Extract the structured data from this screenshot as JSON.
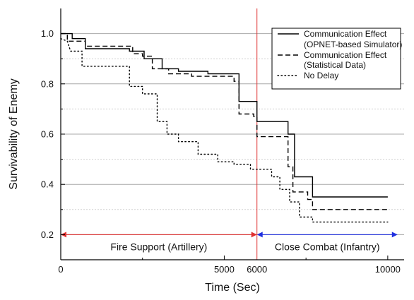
{
  "chart_data": {
    "type": "line",
    "xlabel": "Time (Sec)",
    "ylabel": "Survivability of Enemy",
    "xlim": [
      0,
      10500
    ],
    "ylim": [
      0.1,
      1.1
    ],
    "x_ticks": [
      {
        "value": 0,
        "label": "0"
      },
      {
        "value": 5000,
        "label": "5000"
      },
      {
        "value": 6000,
        "label": "6000",
        "color": "#e03030"
      },
      {
        "value": 10000,
        "label": "10000"
      }
    ],
    "y_ticks": [
      {
        "value": 0.2,
        "label": "0.2"
      },
      {
        "value": 0.4,
        "label": "0.4"
      },
      {
        "value": 0.6,
        "label": "0.6"
      },
      {
        "value": 0.8,
        "label": "0.8"
      },
      {
        "value": 1.0,
        "label": "1.0"
      }
    ],
    "grid": true,
    "legend_position": "top-right",
    "series": [
      {
        "name_lines": [
          "Communication Effect",
          "(OPNET-based Simulator)"
        ],
        "style": "solid",
        "color": "#000000",
        "x": [
          0,
          350,
          350,
          750,
          750,
          2100,
          2100,
          2550,
          2550,
          3100,
          3100,
          3600,
          3600,
          4500,
          4500,
          5450,
          5450,
          6000,
          6000,
          6950,
          6950,
          7150,
          7150,
          7700,
          7700,
          10000
        ],
        "y": [
          1.0,
          1.0,
          0.98,
          0.98,
          0.94,
          0.94,
          0.93,
          0.93,
          0.9,
          0.9,
          0.86,
          0.86,
          0.85,
          0.85,
          0.84,
          0.84,
          0.73,
          0.73,
          0.65,
          0.65,
          0.6,
          0.6,
          0.43,
          0.43,
          0.35,
          0.35
        ]
      },
      {
        "name_lines": [
          "Communication Effect",
          "(Statistical Data)"
        ],
        "style": "dashed",
        "color": "#000000",
        "x": [
          0,
          200,
          200,
          750,
          750,
          2200,
          2200,
          2500,
          2500,
          2800,
          2800,
          3300,
          3300,
          4000,
          4000,
          5300,
          5300,
          5450,
          5450,
          5900,
          5900,
          6000,
          6000,
          6950,
          6950,
          7100,
          7100,
          7550,
          7550,
          7700,
          7700,
          10000
        ],
        "y": [
          1.0,
          1.0,
          0.97,
          0.97,
          0.95,
          0.95,
          0.92,
          0.92,
          0.91,
          0.91,
          0.86,
          0.86,
          0.84,
          0.84,
          0.83,
          0.83,
          0.81,
          0.81,
          0.68,
          0.68,
          0.67,
          0.67,
          0.59,
          0.59,
          0.47,
          0.47,
          0.37,
          0.37,
          0.34,
          0.34,
          0.3,
          0.3
        ]
      },
      {
        "name_lines": [
          "No Delay"
        ],
        "style": "dotted",
        "color": "#000000",
        "x": [
          0,
          200,
          300,
          650,
          650,
          2100,
          2100,
          2500,
          2500,
          2950,
          2950,
          3250,
          3250,
          3600,
          3600,
          4200,
          4200,
          4800,
          4800,
          5300,
          5300,
          5800,
          5800,
          6450,
          6450,
          6700,
          6700,
          7000,
          7000,
          7300,
          7300,
          7700,
          7700,
          10000
        ],
        "y": [
          0.98,
          0.97,
          0.93,
          0.93,
          0.87,
          0.87,
          0.79,
          0.79,
          0.76,
          0.76,
          0.65,
          0.65,
          0.6,
          0.6,
          0.57,
          0.57,
          0.52,
          0.52,
          0.49,
          0.49,
          0.48,
          0.48,
          0.46,
          0.46,
          0.43,
          0.43,
          0.38,
          0.38,
          0.33,
          0.33,
          0.27,
          0.27,
          0.25,
          0.25
        ]
      }
    ],
    "vertical_marker": {
      "x": 6000,
      "color": "#e03030"
    },
    "phases": [
      {
        "label": "Fire Support (Artillery)",
        "x_start": 0,
        "x_end": 6000,
        "y": 0.2,
        "color": "#e03030"
      },
      {
        "label": "Close Combat (Infantry)",
        "x_start": 6000,
        "x_end": 10300,
        "y": 0.2,
        "color": "#2030e0"
      }
    ]
  }
}
